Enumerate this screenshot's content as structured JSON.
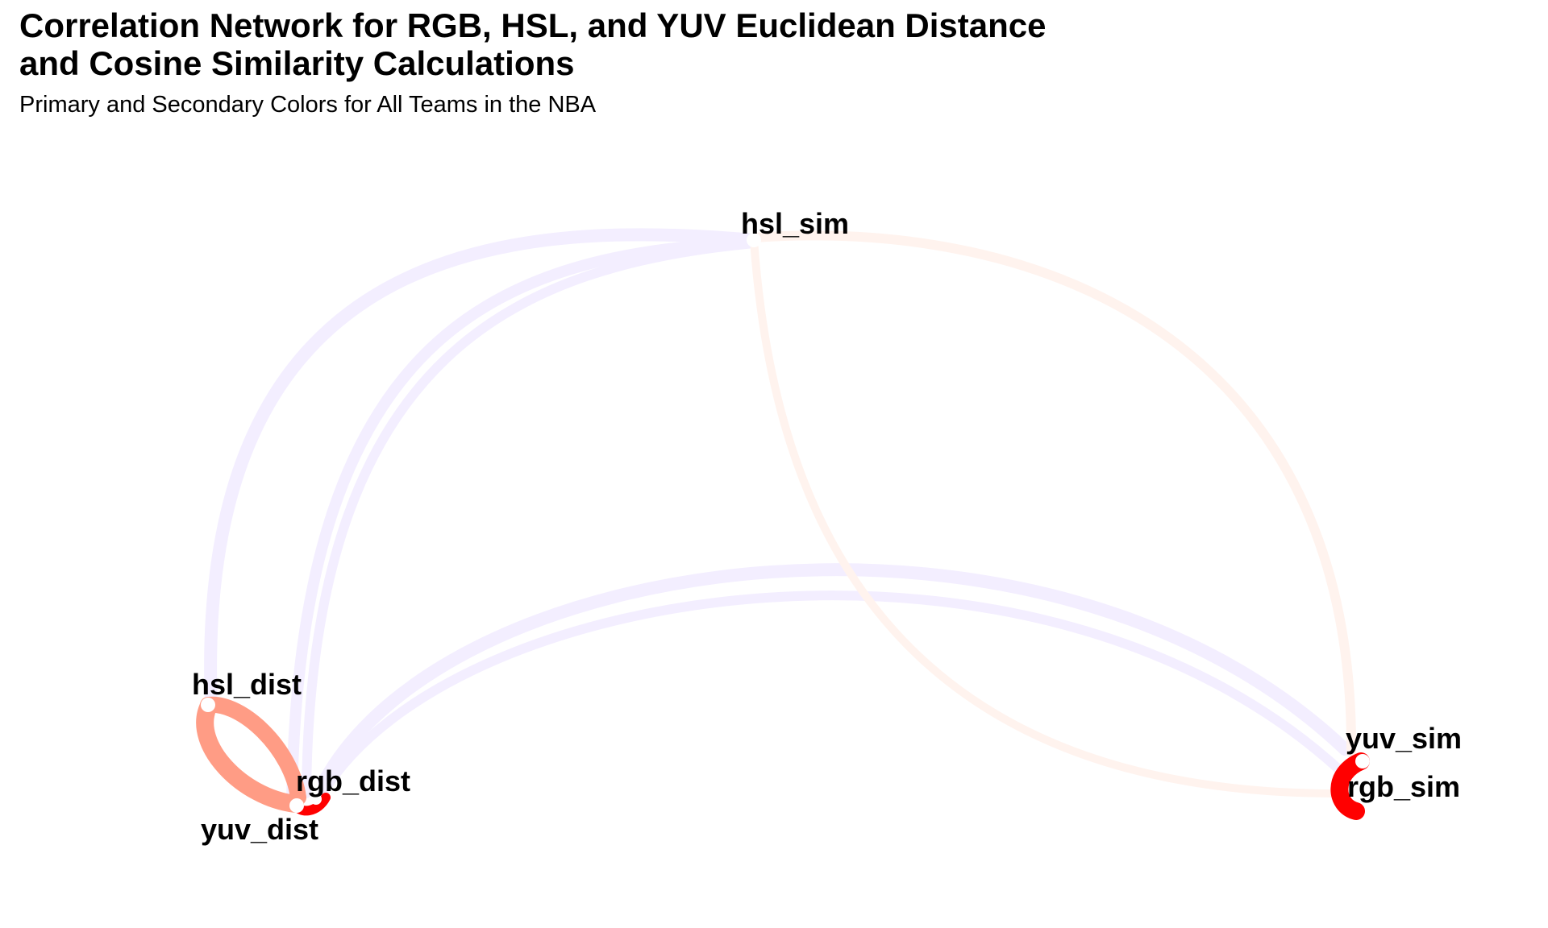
{
  "title_line1": "Correlation Network for RGB, HSL, and YUV Euclidean Distance",
  "title_line2": "and Cosine Similarity Calculations",
  "subtitle": "Primary and Secondary Colors for All Teams in the NBA",
  "colors": {
    "strong_positive": "#ff0000",
    "positive": "#ff9c85",
    "weak_positive": "#fff3ee",
    "weak_negative": "#f3eeff",
    "node": "#ffffff"
  },
  "nodes": [
    {
      "id": "hsl_sim",
      "label": "hsl_sim"
    },
    {
      "id": "hsl_dist",
      "label": "hsl_dist"
    },
    {
      "id": "rgb_dist",
      "label": "rgb_dist"
    },
    {
      "id": "yuv_dist",
      "label": "yuv_dist"
    },
    {
      "id": "yuv_sim",
      "label": "yuv_sim"
    },
    {
      "id": "rgb_sim",
      "label": "rgb_sim"
    }
  ],
  "chart_data": {
    "type": "network",
    "title": "Correlation Network for RGB, HSL, and YUV Euclidean Distance and Cosine Similarity Calculations",
    "subtitle": "Primary and Secondary Colors for All Teams in the NBA",
    "nodes": [
      "hsl_sim",
      "hsl_dist",
      "rgb_dist",
      "yuv_dist",
      "yuv_sim",
      "rgb_sim"
    ],
    "edges": [
      {
        "from": "hsl_dist",
        "to": "yuv_dist",
        "sign": "positive",
        "strength": "strong"
      },
      {
        "from": "hsl_dist",
        "to": "rgb_dist",
        "sign": "positive",
        "strength": "strong"
      },
      {
        "from": "rgb_dist",
        "to": "yuv_dist",
        "sign": "positive",
        "strength": "very strong"
      },
      {
        "from": "yuv_sim",
        "to": "rgb_sim",
        "sign": "positive",
        "strength": "very strong"
      },
      {
        "from": "hsl_sim",
        "to": "hsl_dist",
        "sign": "negative",
        "strength": "weak"
      },
      {
        "from": "hsl_sim",
        "to": "rgb_dist",
        "sign": "negative",
        "strength": "weak"
      },
      {
        "from": "hsl_sim",
        "to": "yuv_dist",
        "sign": "negative",
        "strength": "weak"
      },
      {
        "from": "hsl_sim",
        "to": "yuv_sim",
        "sign": "positive",
        "strength": "weak"
      },
      {
        "from": "hsl_sim",
        "to": "rgb_sim",
        "sign": "positive",
        "strength": "weak"
      },
      {
        "from": "rgb_dist",
        "to": "yuv_sim",
        "sign": "negative",
        "strength": "weak"
      },
      {
        "from": "yuv_dist",
        "to": "rgb_sim",
        "sign": "negative",
        "strength": "weak"
      }
    ]
  }
}
